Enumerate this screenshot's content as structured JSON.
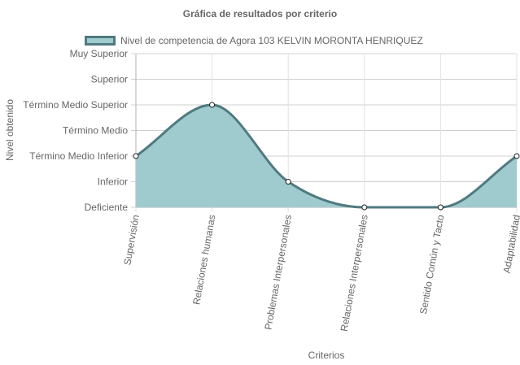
{
  "chart_data": {
    "type": "area",
    "title": "Gráfica de resultados por criterio",
    "xlabel": "Criterios",
    "ylabel": "Nivel obtenido",
    "categories": [
      "Supervisión",
      "Relaciones humanas",
      "Problemas Interpersonales",
      "Relaciones Interpersonales",
      "Sentido Común y Tacto",
      "Adaptabilidad"
    ],
    "y_levels": [
      "Deficiente",
      "Inferior",
      "Término Medio Inferior",
      "Término Medio",
      "Término Medio Superior",
      "Superior",
      "Muy Superior"
    ],
    "ylim": [
      0,
      6
    ],
    "series": [
      {
        "name": "Nivel de competencia de Agora 103 KELVIN MORONTA HENRIQUEZ",
        "values": [
          2,
          4,
          1,
          0,
          0,
          2
        ]
      }
    ],
    "legend_position": "top",
    "grid": true,
    "fill_color": "#a0cbce",
    "line_color": "#4f7a80"
  }
}
